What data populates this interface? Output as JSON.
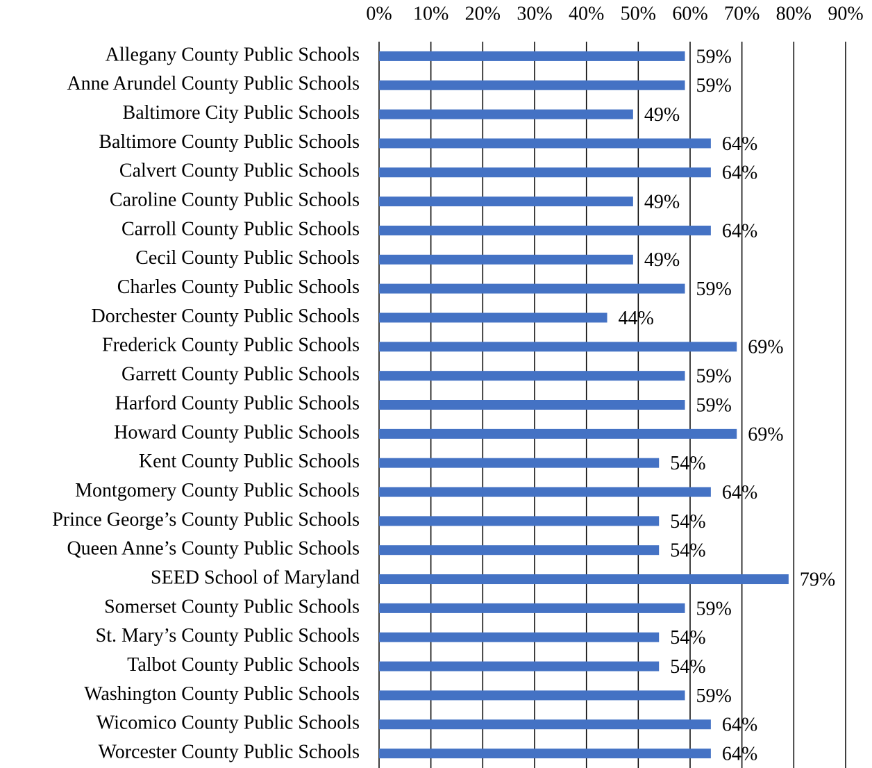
{
  "chart_data": {
    "type": "bar",
    "orientation": "horizontal",
    "categories": [
      "Allegany County Public Schools",
      "Anne Arundel County Public Schools",
      "Baltimore City Public Schools",
      "Baltimore County Public Schools",
      "Calvert County Public Schools",
      "Caroline County Public Schools",
      "Carroll County Public Schools",
      "Cecil County Public Schools",
      "Charles County Public Schools",
      "Dorchester County Public Schools",
      "Frederick County Public Schools",
      "Garrett County Public Schools",
      "Harford County Public Schools",
      "Howard County Public Schools",
      "Kent County Public Schools",
      "Montgomery County Public Schools",
      "Prince George’s County Public Schools",
      "Queen Anne’s County Public Schools",
      "SEED School of Maryland",
      "Somerset County Public Schools",
      "St. Mary’s County Public Schools",
      "Talbot County Public Schools",
      "Washington County Public Schools",
      "Wicomico County Public Schools",
      "Worcester County Public Schools"
    ],
    "values": [
      59,
      59,
      49,
      64,
      64,
      49,
      64,
      49,
      59,
      44,
      69,
      59,
      59,
      69,
      54,
      64,
      54,
      54,
      79,
      59,
      54,
      54,
      59,
      64,
      64
    ],
    "value_labels": [
      "59%",
      "59%",
      "49%",
      "64%",
      "64%",
      "49%",
      "64%",
      "49%",
      "59%",
      "44%",
      "69%",
      "59%",
      "59%",
      "69%",
      "54%",
      "64%",
      "54%",
      "54%",
      "79%",
      "59%",
      "54%",
      "54%",
      "59%",
      "64%",
      "64%"
    ],
    "color": "#4472c4",
    "xlim": [
      0,
      90
    ],
    "xticks": [
      {
        "value": 0,
        "label": "0%"
      },
      {
        "value": 10,
        "label": "10%"
      },
      {
        "value": 20,
        "label": "20%"
      },
      {
        "value": 30,
        "label": "30%"
      },
      {
        "value": 40,
        "label": "40%"
      },
      {
        "value": 50,
        "label": "50%"
      },
      {
        "value": 60,
        "label": "60%"
      },
      {
        "value": 70,
        "label": "70%"
      },
      {
        "value": 80,
        "label": "80%"
      },
      {
        "value": 90,
        "label": "90%"
      }
    ],
    "grid": true
  }
}
